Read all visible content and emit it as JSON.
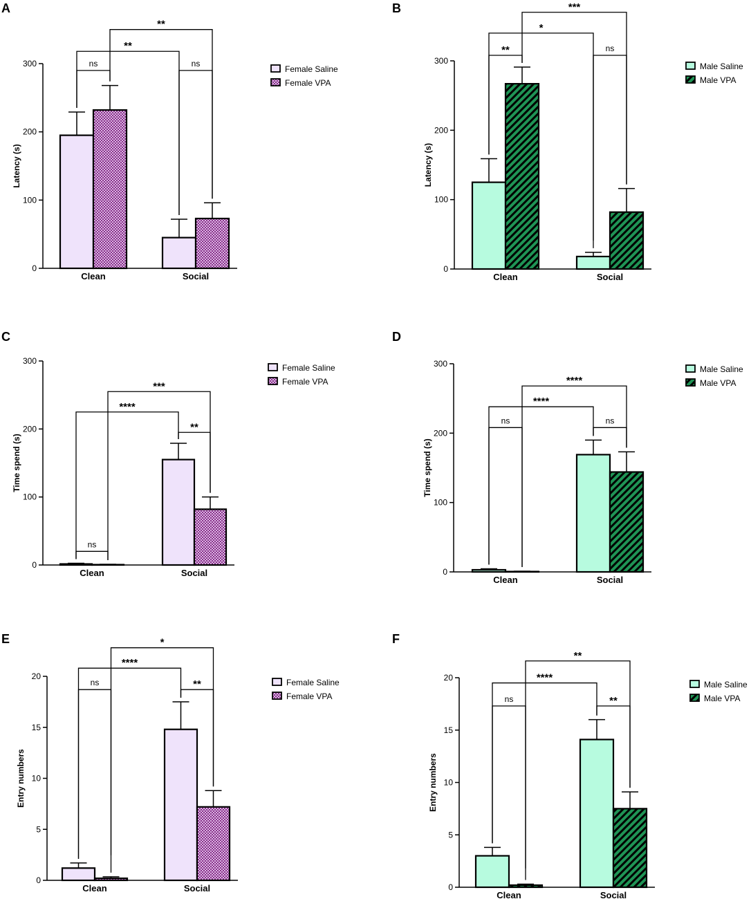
{
  "colors": {
    "female_saline": "#efe3fb",
    "female_vpa": "#8a2f8a",
    "male_saline": "#b7fbdf",
    "male_vpa": "#1f9455",
    "stroke": "#000000"
  },
  "chart_data": [
    {
      "panel": "A",
      "type": "bar",
      "title": "",
      "xlabel": "",
      "ylabel": "Latency (s)",
      "ylim": [
        0,
        300
      ],
      "yticks": [
        "0",
        "100",
        "200",
        "300"
      ],
      "categories": [
        "Clean",
        "Social"
      ],
      "series": [
        {
          "name": "Female Saline",
          "values": [
            195,
            45
          ],
          "errors": [
            34,
            27
          ],
          "pattern": "none"
        },
        {
          "name": "Female VPA",
          "values": [
            232,
            73
          ],
          "errors": [
            36,
            23
          ],
          "pattern": "checker"
        }
      ],
      "legend": {
        "position": "top-right",
        "entries": [
          "Female Saline",
          "Female VPA"
        ]
      },
      "annotations": [
        {
          "label": "ns",
          "from": [
            0,
            0
          ],
          "to": [
            0,
            1
          ],
          "y": 290
        },
        {
          "label": "ns",
          "from": [
            1,
            0
          ],
          "to": [
            1,
            1
          ],
          "y": 290
        },
        {
          "label": "**",
          "from": [
            0,
            0
          ],
          "to": [
            1,
            0
          ],
          "y": 318
        },
        {
          "label": "**",
          "from": [
            0,
            1
          ],
          "to": [
            1,
            1
          ],
          "y": 350
        }
      ]
    },
    {
      "panel": "B",
      "type": "bar",
      "title": "",
      "xlabel": "",
      "ylabel": "Latency (s)",
      "ylim": [
        0,
        300
      ],
      "yticks": [
        "0",
        "100",
        "200",
        "300"
      ],
      "categories": [
        "Clean",
        "Social"
      ],
      "series": [
        {
          "name": "Male Saline",
          "values": [
            125,
            18
          ],
          "errors": [
            34,
            6
          ],
          "pattern": "none"
        },
        {
          "name": "Male VPA",
          "values": [
            267,
            82
          ],
          "errors": [
            24,
            34
          ],
          "pattern": "stripes"
        }
      ],
      "legend": {
        "position": "top-right",
        "entries": [
          "Male Saline",
          "Male VPA"
        ]
      },
      "annotations": [
        {
          "label": "**",
          "from": [
            0,
            0
          ],
          "to": [
            0,
            1
          ],
          "y": 308
        },
        {
          "label": "ns",
          "from": [
            1,
            0
          ],
          "to": [
            1,
            1
          ],
          "y": 308
        },
        {
          "label": "*",
          "from": [
            0,
            0
          ],
          "to": [
            1,
            0
          ],
          "y": 340
        },
        {
          "label": "***",
          "from": [
            0,
            1
          ],
          "to": [
            1,
            1
          ],
          "y": 370
        }
      ]
    },
    {
      "panel": "C",
      "type": "bar",
      "title": "",
      "xlabel": "",
      "ylabel": "Time spend (s)",
      "ylim": [
        0,
        300
      ],
      "yticks": [
        "0",
        "100",
        "200",
        "300"
      ],
      "categories": [
        "Clean",
        "Social"
      ],
      "series": [
        {
          "name": "Female Saline",
          "values": [
            1.5,
            155
          ],
          "errors": [
            1,
            24
          ],
          "pattern": "none"
        },
        {
          "name": "Female VPA",
          "values": [
            0.5,
            82
          ],
          "errors": [
            0.5,
            18
          ],
          "pattern": "checker"
        }
      ],
      "legend": {
        "position": "top-right",
        "entries": [
          "Female Saline",
          "Female VPA"
        ]
      },
      "annotations": [
        {
          "label": "ns",
          "from": [
            0,
            0
          ],
          "to": [
            0,
            1
          ],
          "y": 20
        },
        {
          "label": "**",
          "from": [
            1,
            0
          ],
          "to": [
            1,
            1
          ],
          "y": 195
        },
        {
          "label": "****",
          "from": [
            0,
            0
          ],
          "to": [
            1,
            0
          ],
          "y": 225
        },
        {
          "label": "***",
          "from": [
            0,
            1
          ],
          "to": [
            1,
            1
          ],
          "y": 255
        }
      ]
    },
    {
      "panel": "D",
      "type": "bar",
      "title": "",
      "xlabel": "",
      "ylabel": "Time spend (s)",
      "ylim": [
        0,
        300
      ],
      "yticks": [
        "0",
        "100",
        "200",
        "300"
      ],
      "categories": [
        "Clean",
        "Social"
      ],
      "series": [
        {
          "name": "Male Saline",
          "values": [
            3,
            169
          ],
          "errors": [
            1.5,
            21
          ],
          "pattern": "none"
        },
        {
          "name": "Male VPA",
          "values": [
            0.5,
            144
          ],
          "errors": [
            0.5,
            29
          ],
          "pattern": "stripes"
        }
      ],
      "legend": {
        "position": "top-right",
        "entries": [
          "Male Saline",
          "Male VPA"
        ]
      },
      "annotations": [
        {
          "label": "ns",
          "from": [
            0,
            0
          ],
          "to": [
            0,
            1
          ],
          "y": 208
        },
        {
          "label": "ns",
          "from": [
            1,
            0
          ],
          "to": [
            1,
            1
          ],
          "y": 208
        },
        {
          "label": "****",
          "from": [
            0,
            0
          ],
          "to": [
            1,
            0
          ],
          "y": 238
        },
        {
          "label": "****",
          "from": [
            0,
            1
          ],
          "to": [
            1,
            1
          ],
          "y": 268
        }
      ]
    },
    {
      "panel": "E",
      "type": "bar",
      "title": "",
      "xlabel": "",
      "ylabel": "Entry numbers",
      "ylim": [
        0,
        20
      ],
      "yticks": [
        "0",
        "5",
        "10",
        "15",
        "20"
      ],
      "categories": [
        "Clean",
        "Social"
      ],
      "series": [
        {
          "name": "Female Saline",
          "values": [
            1.2,
            14.8
          ],
          "errors": [
            0.5,
            2.7
          ],
          "pattern": "none"
        },
        {
          "name": "Female VPA",
          "values": [
            0.2,
            7.2
          ],
          "errors": [
            0.15,
            1.6
          ],
          "pattern": "checker"
        }
      ],
      "legend": {
        "position": "top-right",
        "entries": [
          "Female Saline",
          "Female VPA"
        ]
      },
      "annotations": [
        {
          "label": "ns",
          "from": [
            0,
            0
          ],
          "to": [
            0,
            1
          ],
          "y": 18.7
        },
        {
          "label": "**",
          "from": [
            1,
            0
          ],
          "to": [
            1,
            1
          ],
          "y": 18.7
        },
        {
          "label": "****",
          "from": [
            0,
            0
          ],
          "to": [
            1,
            0
          ],
          "y": 20.8
        },
        {
          "label": "*",
          "from": [
            0,
            1
          ],
          "to": [
            1,
            1
          ],
          "y": 22.8
        }
      ]
    },
    {
      "panel": "F",
      "type": "bar",
      "title": "",
      "xlabel": "",
      "ylabel": "Entry numbers",
      "ylim": [
        0,
        20
      ],
      "yticks": [
        "0",
        "5",
        "10",
        "15",
        "20"
      ],
      "categories": [
        "Clean",
        "Social"
      ],
      "series": [
        {
          "name": "Male Saline",
          "values": [
            3.0,
            14.1
          ],
          "errors": [
            0.8,
            1.9
          ],
          "pattern": "none"
        },
        {
          "name": "Male VPA",
          "values": [
            0.2,
            7.5
          ],
          "errors": [
            0.1,
            1.6
          ],
          "pattern": "stripes"
        }
      ],
      "legend": {
        "position": "top-right",
        "entries": [
          "Male Saline",
          "Male VPA"
        ]
      },
      "annotations": [
        {
          "label": "ns",
          "from": [
            0,
            0
          ],
          "to": [
            0,
            1
          ],
          "y": 17.3
        },
        {
          "label": "**",
          "from": [
            1,
            0
          ],
          "to": [
            1,
            1
          ],
          "y": 17.3
        },
        {
          "label": "****",
          "from": [
            0,
            0
          ],
          "to": [
            1,
            0
          ],
          "y": 19.5
        },
        {
          "label": "**",
          "from": [
            0,
            1
          ],
          "to": [
            1,
            1
          ],
          "y": 21.6
        }
      ]
    }
  ]
}
